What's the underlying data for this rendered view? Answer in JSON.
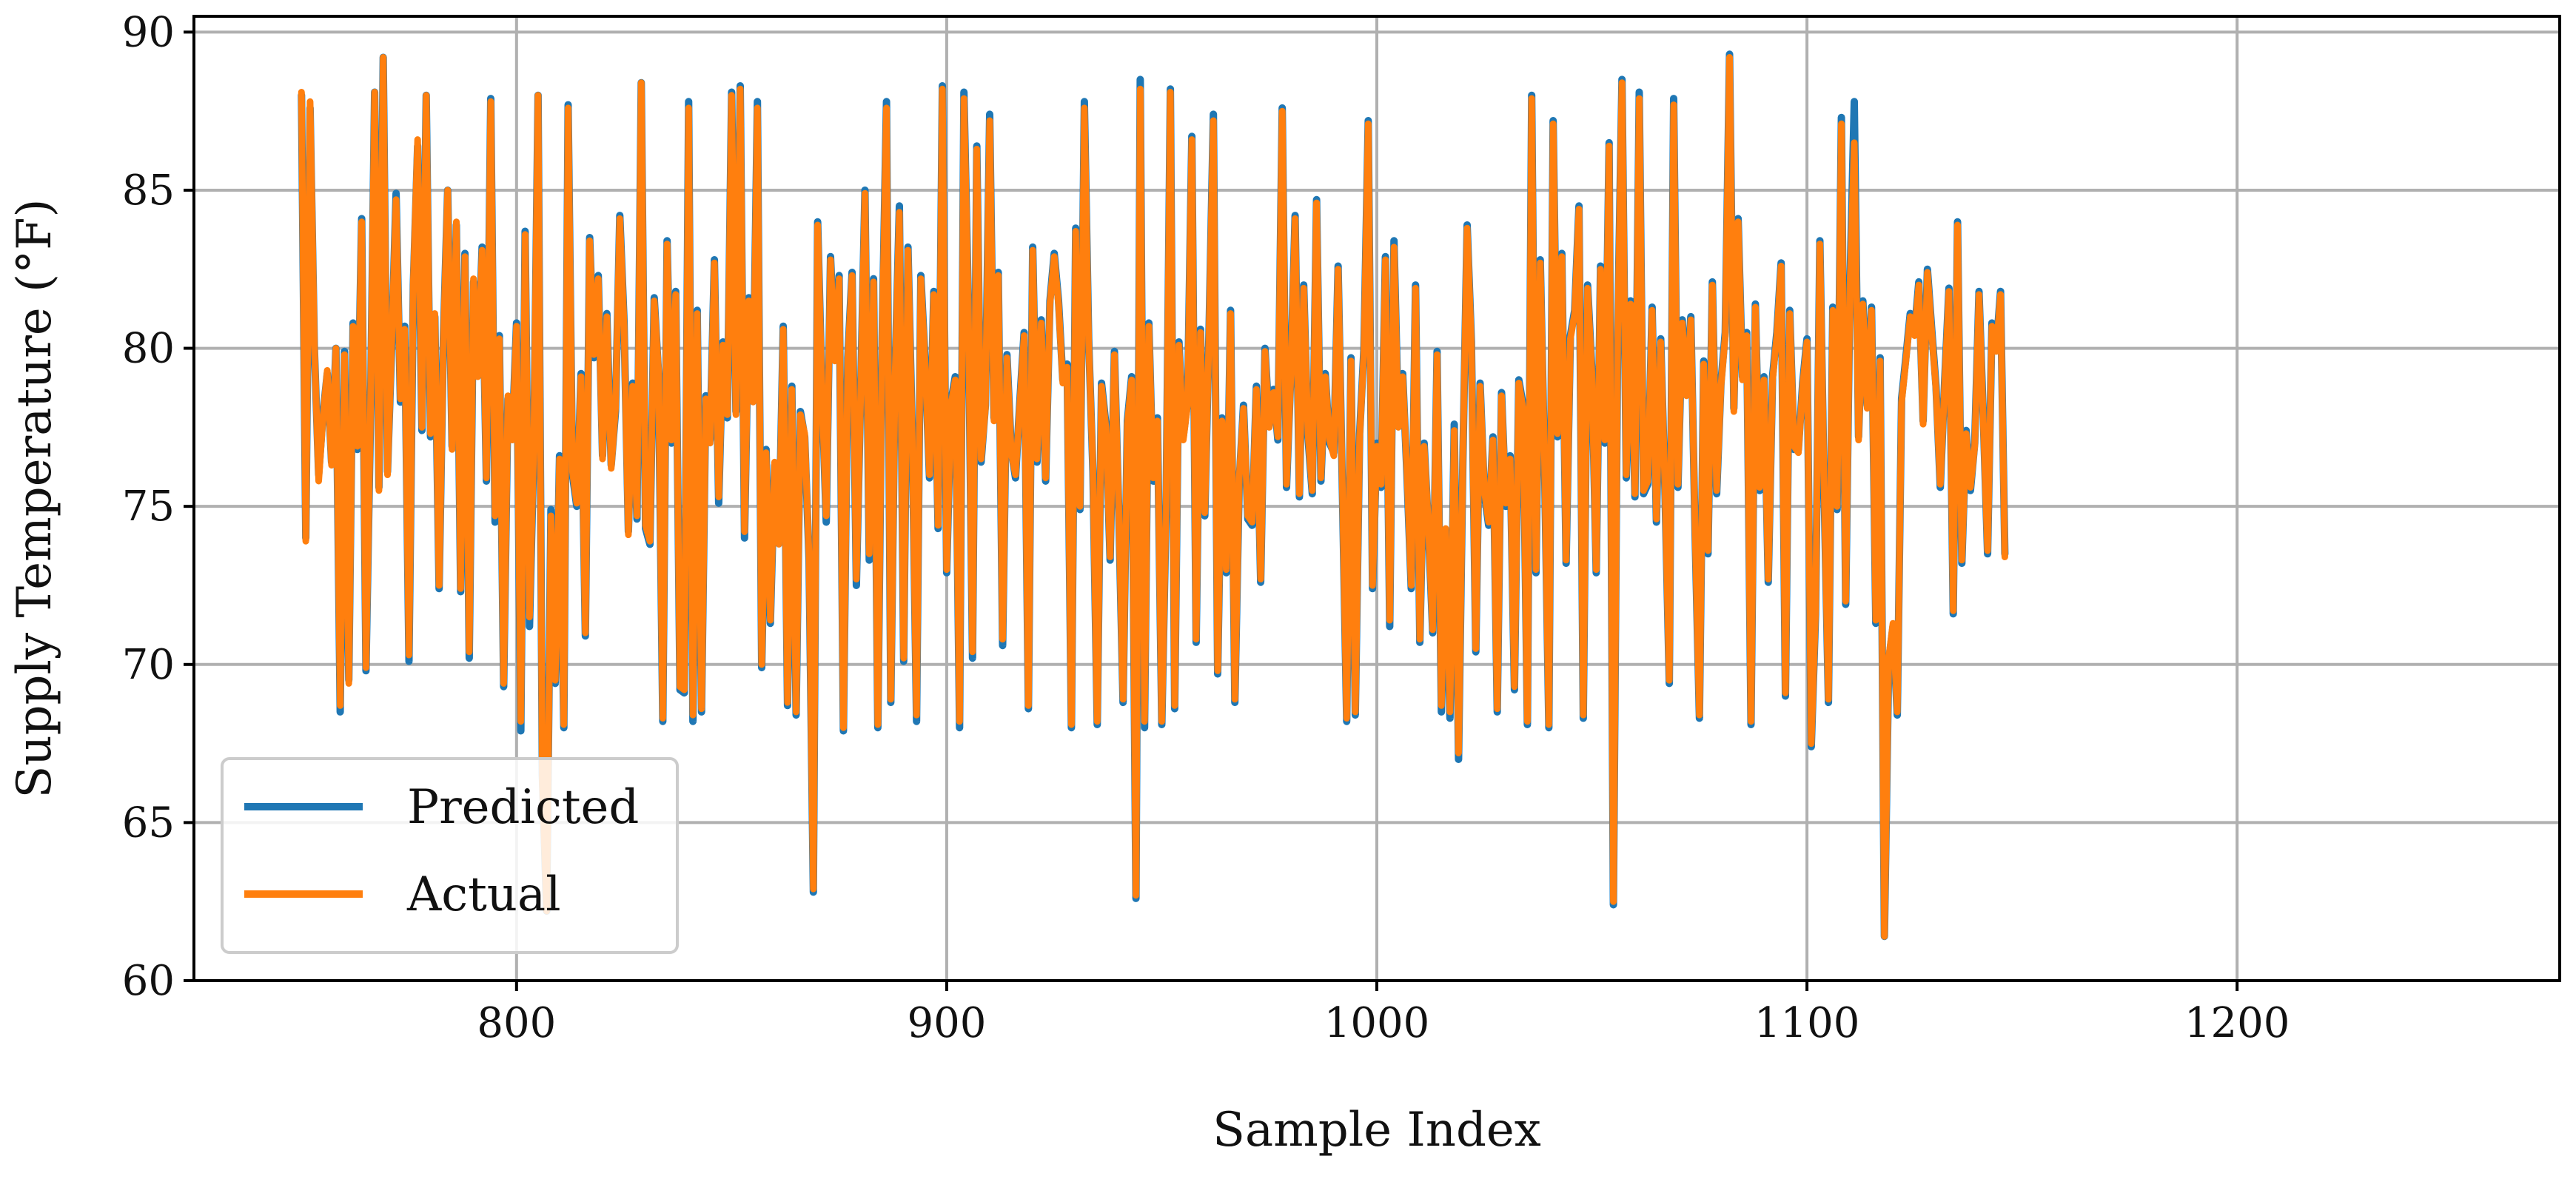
{
  "chart_data": {
    "type": "line",
    "xlabel": "Sample Index",
    "ylabel": "Supply Temperature (°F)",
    "xlim": [
      725,
      1275
    ],
    "ylim": [
      60,
      90.5
    ],
    "xticks": [
      800,
      900,
      1000,
      1100,
      1200
    ],
    "yticks": [
      60,
      65,
      70,
      75,
      80,
      85,
      90
    ],
    "grid": true,
    "legend_position": "lower-left",
    "x_start": 750,
    "x_step": 1,
    "series": [
      {
        "name": "Predicted",
        "color": "#1f77b4",
        "values": [
          88.0,
          74.0,
          87.6,
          80.0,
          76.0,
          77.9,
          79.2,
          76.4,
          80.0,
          68.5,
          79.9,
          69.5,
          80.8,
          76.8,
          84.1,
          69.8,
          77.4,
          88.1,
          75.6,
          89.2,
          76.1,
          80.2,
          84.9,
          78.3,
          80.7,
          70.1,
          82.0,
          86.4,
          77.4,
          88.0,
          77.2,
          81.0,
          72.4,
          80.3,
          85.0,
          76.9,
          83.9,
          72.3,
          83.0,
          70.2,
          82.1,
          79.2,
          83.2,
          75.8,
          87.9,
          74.5,
          80.4,
          69.3,
          78.4,
          77.2,
          80.8,
          67.9,
          83.7,
          71.2,
          76.8,
          88.0,
          66.5,
          62.2,
          74.9,
          69.4,
          76.6,
          68.0,
          87.7,
          76.0,
          75.0,
          79.2,
          70.9,
          83.5,
          79.7,
          82.3,
          76.6,
          81.1,
          76.3,
          78.0,
          84.2,
          80.8,
          74.2,
          78.9,
          74.6,
          88.4,
          74.3,
          73.8,
          81.6,
          79.2,
          68.2,
          83.4,
          77.0,
          81.8,
          69.2,
          69.1,
          87.8,
          68.2,
          81.2,
          68.5,
          78.5,
          77.1,
          82.8,
          75.1,
          80.2,
          77.8,
          88.1,
          78.0,
          88.3,
          74.0,
          81.6,
          78.4,
          87.8,
          69.9,
          76.8,
          71.3,
          76.3,
          73.9,
          80.7,
          68.7,
          78.8,
          68.4,
          78.0,
          77.2,
          73.3,
          62.8,
          84.0,
          78.7,
          74.5,
          82.9,
          79.7,
          82.3,
          67.9,
          79.7,
          82.4,
          72.5,
          78.6,
          85.0,
          73.3,
          82.2,
          68.0,
          80.3,
          87.8,
          68.8,
          79.2,
          84.5,
          70.1,
          83.2,
          77.3,
          68.2,
          82.3,
          79.5,
          75.9,
          81.8,
          74.3,
          88.3,
          72.9,
          78.3,
          79.1,
          68.0,
          88.1,
          81.6,
          70.2,
          86.4,
          76.4,
          78.2,
          87.4,
          77.8,
          82.4,
          70.6,
          79.8,
          76.8,
          75.9,
          78.3,
          80.5,
          68.6,
          83.2,
          76.4,
          80.9,
          75.8,
          81.5,
          83.0,
          81.5,
          79.0,
          79.5,
          68.0,
          83.8,
          74.9,
          87.8,
          80.3,
          76.1,
          68.1,
          78.9,
          77.6,
          73.3,
          79.9,
          74.9,
          68.8,
          77.7,
          79.1,
          62.6,
          88.5,
          68.0,
          80.8,
          75.8,
          77.8,
          68.1,
          74.9,
          88.2,
          68.6,
          80.2,
          77.2,
          78.3,
          86.7,
          70.7,
          80.6,
          74.7,
          80.6,
          87.4,
          69.7,
          77.8,
          72.9,
          81.2,
          68.8,
          75.8,
          78.2,
          74.6,
          74.4,
          78.8,
          72.6,
          80.0,
          77.6,
          78.7,
          77.1,
          87.6,
          75.6,
          79.2,
          84.2,
          75.3,
          82.0,
          77.2,
          75.4,
          84.7,
          75.8,
          79.2,
          77.0,
          76.7,
          82.6,
          75.5,
          68.2,
          79.7,
          68.4,
          77.3,
          80.0,
          87.2,
          72.4,
          77.0,
          75.6,
          82.9,
          71.2,
          83.4,
          77.6,
          79.2,
          76.0,
          72.4,
          82.0,
          70.7,
          77.0,
          74.3,
          71.0,
          79.9,
          68.5,
          74.2,
          68.3,
          77.6,
          67.0,
          76.4,
          83.9,
          80.2,
          70.4,
          78.9,
          75.4,
          74.4,
          77.2,
          68.5,
          78.6,
          75.0,
          76.6,
          69.2,
          79.0,
          78.2,
          68.1,
          88.0,
          72.9,
          82.8,
          76.3,
          68.0,
          87.2,
          77.2,
          83.0,
          73.2,
          80.4,
          81.2,
          84.5,
          68.3,
          82.0,
          79.3,
          72.9,
          82.6,
          77.0,
          86.5,
          62.4,
          80.5,
          88.5,
          75.9,
          81.5,
          75.3,
          88.1,
          75.4,
          75.7,
          81.3,
          74.5,
          80.3,
          75.5,
          69.4,
          87.9,
          75.6,
          80.9,
          78.6,
          81.0,
          74.1,
          68.3,
          79.6,
          73.5,
          82.1,
          75.4,
          78.9,
          80.5,
          89.3,
          78.1,
          84.1,
          79.1,
          80.5,
          68.1,
          81.4,
          75.5,
          79.1,
          72.6,
          79.1,
          80.5,
          82.7,
          69.0,
          81.2,
          76.8,
          76.8,
          78.9,
          80.3,
          67.4,
          71.6,
          83.4,
          75.5,
          68.8,
          81.3,
          74.9,
          87.3,
          71.9,
          82.0,
          87.8,
          77.2,
          81.5,
          78.2,
          81.3,
          71.3,
          79.7,
          61.4,
          70.1,
          71.2,
          68.4,
          78.4,
          79.7,
          81.1,
          80.5,
          82.1,
          77.7,
          82.5,
          80.6,
          78.8,
          75.6,
          78.9,
          81.9,
          71.6,
          84.0,
          73.2,
          77.4,
          75.5,
          77.0,
          81.8,
          77.8,
          73.5,
          80.8,
          80.0,
          81.8,
          73.5
        ],
        "note_offset": 0
      },
      {
        "name": "Actual",
        "color": "#ff7f0e",
        "values": [
          88.1,
          73.9,
          87.8,
          80.1,
          75.8,
          77.8,
          79.3,
          76.3,
          80.0,
          68.7,
          79.8,
          69.4,
          80.7,
          76.9,
          84.0,
          69.9,
          77.5,
          88.1,
          75.5,
          89.2,
          76.0,
          80.3,
          84.7,
          78.4,
          80.6,
          70.3,
          82.1,
          86.6,
          77.5,
          88.0,
          77.3,
          81.1,
          72.5,
          80.2,
          85.0,
          76.8,
          84.0,
          72.4,
          82.9,
          70.4,
          82.2,
          79.1,
          83.1,
          75.9,
          87.8,
          74.7,
          80.3,
          69.4,
          78.5,
          77.1,
          80.7,
          68.2,
          83.6,
          71.5,
          76.9,
          88.0,
          66.3,
          62.2,
          74.7,
          69.5,
          76.5,
          68.1,
          87.6,
          76.1,
          75.1,
          79.1,
          71.0,
          83.4,
          79.8,
          82.2,
          76.5,
          81.0,
          76.2,
          78.1,
          84.1,
          80.7,
          74.1,
          78.8,
          74.7,
          88.4,
          74.4,
          73.9,
          81.5,
          79.3,
          68.3,
          83.3,
          77.1,
          81.7,
          69.3,
          69.2,
          87.6,
          68.4,
          81.1,
          68.6,
          78.4,
          77.0,
          82.7,
          75.3,
          80.1,
          77.9,
          88.0,
          77.9,
          88.2,
          74.2,
          81.5,
          78.3,
          87.6,
          70.0,
          76.7,
          71.4,
          76.4,
          73.8,
          80.6,
          68.8,
          78.7,
          68.5,
          77.9,
          77.3,
          73.4,
          62.9,
          83.9,
          78.6,
          74.7,
          82.8,
          79.6,
          82.2,
          68.0,
          79.6,
          82.3,
          72.7,
          78.5,
          84.9,
          73.5,
          82.1,
          68.1,
          80.2,
          87.6,
          68.9,
          79.1,
          84.3,
          70.2,
          83.1,
          77.2,
          68.4,
          82.2,
          79.4,
          76.0,
          81.7,
          74.4,
          88.2,
          73.0,
          78.2,
          79.0,
          68.2,
          87.9,
          81.5,
          70.4,
          86.3,
          76.5,
          78.1,
          87.2,
          77.7,
          82.3,
          70.8,
          79.7,
          76.7,
          76.0,
          78.2,
          80.4,
          68.7,
          83.1,
          76.5,
          80.8,
          75.9,
          81.4,
          82.9,
          81.4,
          78.9,
          79.4,
          68.1,
          83.7,
          75.0,
          87.6,
          80.2,
          76.2,
          68.2,
          78.8,
          77.5,
          73.4,
          79.8,
          75.0,
          68.9,
          77.6,
          79.0,
          62.7,
          88.2,
          68.2,
          80.7,
          75.9,
          77.7,
          68.2,
          75.0,
          88.1,
          68.7,
          80.1,
          77.1,
          78.2,
          86.6,
          70.8,
          80.5,
          74.8,
          80.5,
          87.2,
          69.8,
          77.7,
          73.0,
          81.1,
          68.9,
          75.9,
          78.1,
          74.7,
          74.5,
          78.7,
          72.7,
          79.9,
          77.5,
          78.6,
          77.2,
          87.5,
          75.7,
          79.1,
          84.1,
          75.4,
          81.9,
          77.3,
          75.5,
          84.6,
          75.9,
          79.1,
          77.1,
          76.6,
          82.5,
          75.6,
          68.3,
          79.6,
          68.5,
          77.2,
          79.9,
          87.1,
          72.5,
          76.9,
          75.7,
          82.8,
          71.4,
          83.2,
          77.5,
          79.1,
          76.1,
          72.5,
          81.9,
          70.8,
          76.9,
          74.4,
          71.1,
          79.8,
          68.7,
          74.3,
          68.5,
          77.4,
          67.2,
          76.5,
          83.8,
          80.1,
          70.5,
          78.8,
          75.5,
          74.5,
          77.1,
          68.6,
          78.5,
          75.1,
          76.5,
          69.3,
          78.9,
          78.1,
          68.2,
          87.9,
          73.0,
          82.7,
          76.4,
          68.1,
          87.1,
          77.3,
          82.9,
          73.3,
          80.3,
          81.1,
          84.4,
          68.4,
          81.9,
          79.2,
          73.0,
          82.5,
          77.1,
          86.4,
          62.5,
          80.4,
          88.4,
          76.0,
          81.4,
          75.4,
          87.9,
          75.5,
          75.8,
          81.2,
          74.6,
          80.2,
          75.6,
          69.5,
          87.7,
          75.7,
          80.8,
          78.5,
          80.9,
          74.2,
          68.4,
          79.5,
          73.6,
          82.0,
          75.5,
          78.8,
          80.4,
          89.2,
          78.0,
          84.0,
          79.0,
          80.4,
          68.2,
          81.3,
          75.6,
          79.0,
          72.7,
          79.0,
          80.4,
          82.6,
          69.1,
          81.1,
          76.9,
          76.7,
          78.8,
          80.2,
          67.5,
          71.7,
          83.3,
          75.6,
          68.9,
          81.2,
          75.0,
          87.1,
          72.0,
          81.9,
          86.5,
          77.1,
          81.4,
          78.1,
          81.2,
          71.4,
          79.6,
          61.4,
          70.2,
          71.3,
          68.5,
          78.3,
          79.6,
          81.0,
          80.4,
          82.0,
          77.6,
          82.4,
          80.5,
          78.7,
          75.7,
          78.8,
          81.8,
          71.7,
          83.9,
          73.3,
          77.3,
          75.6,
          76.9,
          81.7,
          77.7,
          73.6,
          80.7,
          79.9,
          81.7,
          73.4
        ]
      }
    ]
  }
}
